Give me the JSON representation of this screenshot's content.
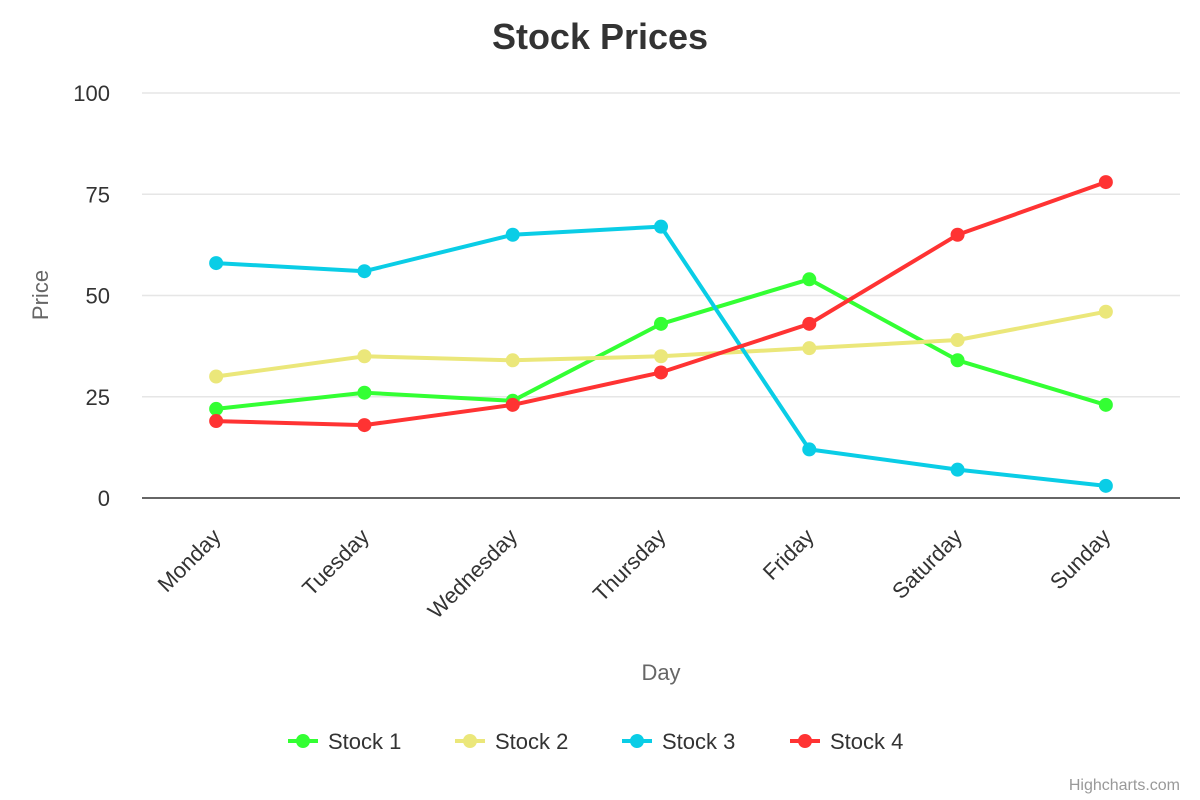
{
  "chart_data": {
    "type": "line",
    "title": "Stock Prices",
    "xlabel": "Day",
    "ylabel": "Price",
    "categories": [
      "Monday",
      "Tuesday",
      "Wednesday",
      "Thursday",
      "Friday",
      "Saturday",
      "Sunday"
    ],
    "ylim": [
      0,
      100
    ],
    "yticks": [
      "0",
      "25",
      "50",
      "75",
      "100"
    ],
    "grid": true,
    "legend_position": "bottom-center",
    "series": [
      {
        "name": "Stock 1",
        "color": "#33ff33",
        "values": [
          22,
          26,
          24,
          43,
          54,
          34,
          23
        ]
      },
      {
        "name": "Stock 2",
        "color": "#ebe77a",
        "values": [
          30,
          35,
          34,
          35,
          37,
          39,
          46
        ]
      },
      {
        "name": "Stock 3",
        "color": "#0acde6",
        "values": [
          58,
          56,
          65,
          67,
          12,
          7,
          3
        ]
      },
      {
        "name": "Stock 4",
        "color": "#ff3333",
        "values": [
          19,
          18,
          23,
          31,
          43,
          65,
          78
        ]
      }
    ]
  },
  "credit": "Highcharts.com"
}
